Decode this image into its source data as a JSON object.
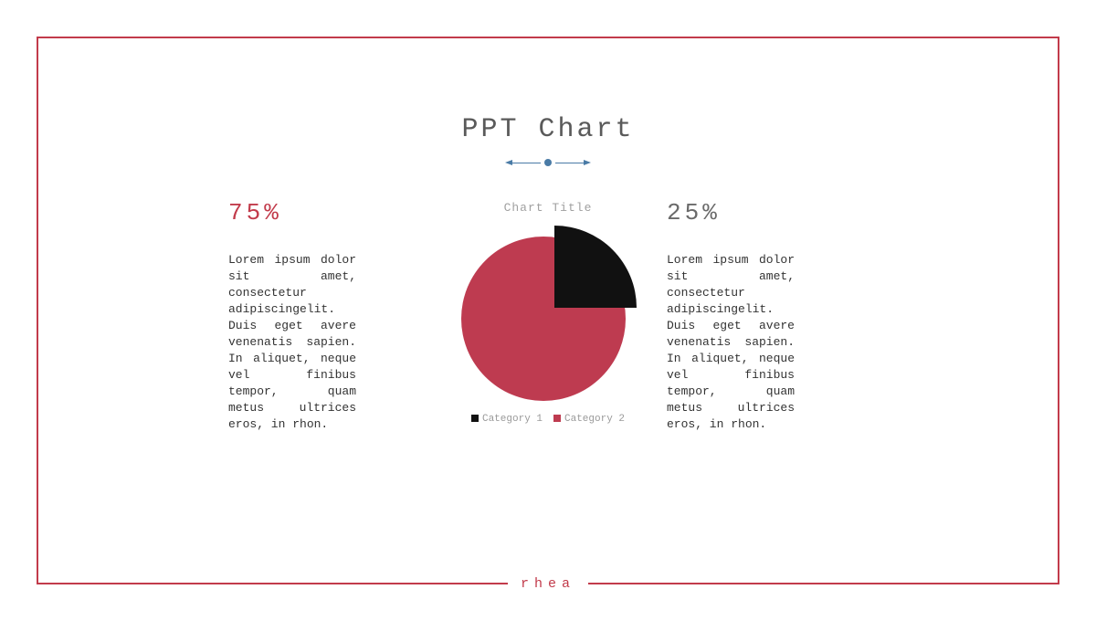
{
  "title": "PPT Chart",
  "divider": {
    "color": "#4a7ba6"
  },
  "chart": {
    "type": "pie",
    "title": "Chart Title",
    "slices": [
      {
        "label": "Category 1",
        "value": 25,
        "color": "#111111"
      },
      {
        "label": "Category 2",
        "value": 75,
        "color": "#be3b50"
      }
    ],
    "exploded": true,
    "background": "#ffffff"
  },
  "left": {
    "percent": "75%",
    "body": "Lorem ipsum dolor sit amet, consectetur adipiscingelit. Duis eget avere venenatis sapien. In aliquet, neque vel finibus tempor, quam metus ultrices eros, in rhon."
  },
  "right": {
    "percent": "25%",
    "body": "Lorem ipsum dolor sit amet, consectetur adipiscingelit. Duis eget avere venenatis sapien. In aliquet, neque vel finibus tempor, quam metus ultrices eros, in rhon."
  },
  "footer": "rhea",
  "frame_color": "#c23b4b"
}
